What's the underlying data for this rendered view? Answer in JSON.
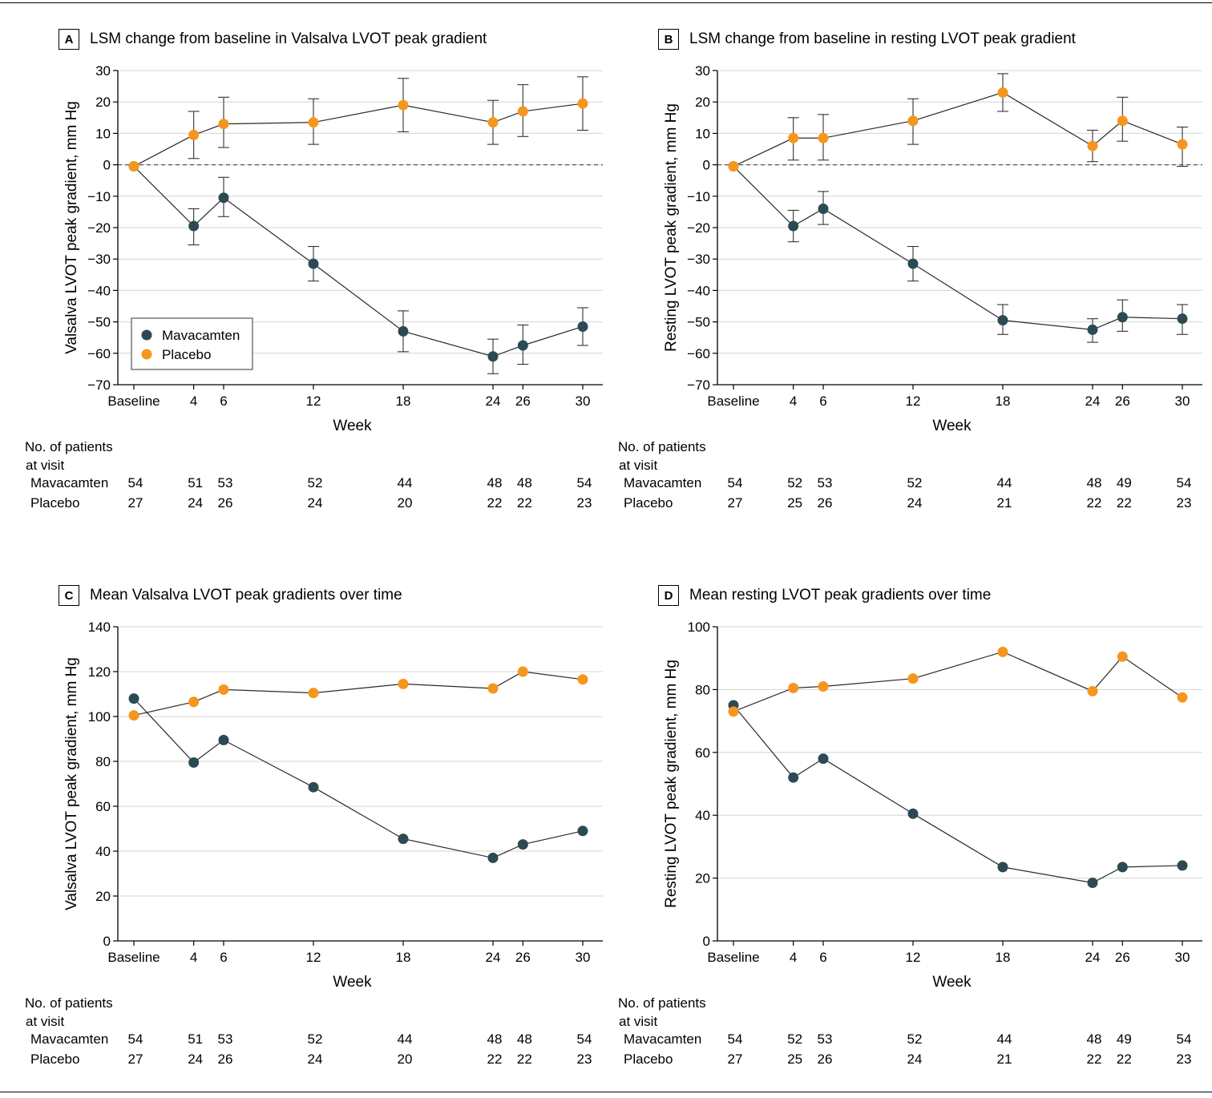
{
  "colors": {
    "mavacamten": "#2c4a54",
    "placebo": "#f5961e",
    "grid": "#d4d4d4",
    "axis": "#000000",
    "line": "#2a2a2a"
  },
  "x_axis": {
    "label": "Week",
    "ticks": [
      {
        "x": 0,
        "label": "Baseline"
      },
      {
        "x": 4,
        "label": "4"
      },
      {
        "x": 6,
        "label": "6"
      },
      {
        "x": 12,
        "label": "12"
      },
      {
        "x": 18,
        "label": "18"
      },
      {
        "x": 24,
        "label": "24"
      },
      {
        "x": 26,
        "label": "26"
      },
      {
        "x": 30,
        "label": "30"
      }
    ]
  },
  "counts_header": [
    "No. of patients",
    "at visit"
  ],
  "legend": {
    "entries": [
      "Mavacamten",
      "Placebo"
    ]
  },
  "panels": [
    {
      "letter": "A",
      "title": "LSM change from baseline in Valsalva LVOT peak gradient",
      "counts": {
        "mavacamten": [
          "54",
          "51",
          "53",
          "52",
          "44",
          "48",
          "48",
          "54"
        ],
        "placebo": [
          "27",
          "24",
          "26",
          "24",
          "20",
          "22",
          "22",
          "23"
        ]
      }
    },
    {
      "letter": "B",
      "title": "LSM change from baseline in resting LVOT peak gradient",
      "counts": {
        "mavacamten": [
          "54",
          "52",
          "53",
          "52",
          "44",
          "48",
          "49",
          "54"
        ],
        "placebo": [
          "27",
          "25",
          "26",
          "24",
          "21",
          "22",
          "22",
          "23"
        ]
      }
    },
    {
      "letter": "C",
      "title": "Mean Valsalva LVOT peak gradients over time",
      "counts": {
        "mavacamten": [
          "54",
          "51",
          "53",
          "52",
          "44",
          "48",
          "48",
          "54"
        ],
        "placebo": [
          "27",
          "24",
          "26",
          "24",
          "20",
          "22",
          "22",
          "23"
        ]
      }
    },
    {
      "letter": "D",
      "title": "Mean resting LVOT peak gradients over time",
      "counts": {
        "mavacamten": [
          "54",
          "52",
          "53",
          "52",
          "44",
          "48",
          "49",
          "54"
        ],
        "placebo": [
          "27",
          "25",
          "26",
          "24",
          "21",
          "22",
          "22",
          "23"
        ]
      }
    }
  ],
  "chart_data": [
    {
      "type": "line",
      "title": "LSM change from baseline in Valsalva LVOT peak gradient",
      "xlabel": "Week",
      "ylabel": "Valsalva LVOT peak gradient, mm Hg",
      "ylim": [
        -70,
        30
      ],
      "yticks": [
        30,
        20,
        10,
        0,
        -10,
        -20,
        -30,
        -40,
        -50,
        -60,
        -70
      ],
      "grid": true,
      "zero_line": "dashed",
      "legend": "lower-left",
      "x": [
        0,
        4,
        6,
        12,
        18,
        24,
        26,
        30
      ],
      "series": [
        {
          "name": "Mavacamten",
          "values": [
            -0.5,
            -19.5,
            -10.5,
            -31.5,
            -53,
            -61,
            -57.5,
            -51.5
          ],
          "error_low": [
            -0.5,
            -25.5,
            -16.5,
            -37,
            -59.5,
            -66.5,
            -63.5,
            -57.5
          ],
          "error_high": [
            -0.5,
            -14,
            -4,
            -26,
            -46.5,
            -55.5,
            -51,
            -45.5
          ]
        },
        {
          "name": "Placebo",
          "values": [
            -0.5,
            9.5,
            13,
            13.5,
            19,
            13.5,
            17,
            19.5
          ],
          "error_low": [
            -0.5,
            2,
            5.5,
            6.5,
            10.5,
            6.5,
            9,
            11
          ],
          "error_high": [
            -0.5,
            17,
            21.5,
            21,
            27.5,
            20.5,
            25.5,
            28
          ]
        }
      ]
    },
    {
      "type": "line",
      "title": "LSM change from baseline in resting LVOT peak gradient",
      "xlabel": "Week",
      "ylabel": "Resting LVOT peak gradient, mm Hg",
      "ylim": [
        -70,
        30
      ],
      "yticks": [
        30,
        20,
        10,
        0,
        -10,
        -20,
        -30,
        -40,
        -50,
        -60,
        -70
      ],
      "grid": true,
      "zero_line": "dashed",
      "x": [
        0,
        4,
        6,
        12,
        18,
        24,
        26,
        30
      ],
      "series": [
        {
          "name": "Mavacamten",
          "values": [
            -0.5,
            -19.5,
            -14,
            -31.5,
            -49.5,
            -52.5,
            -48.5,
            -49
          ],
          "error_low": [
            -0.5,
            -24.5,
            -19,
            -37,
            -54,
            -56.5,
            -53,
            -54
          ],
          "error_high": [
            -0.5,
            -14.5,
            -8.5,
            -26,
            -44.5,
            -49,
            -43,
            -44.5
          ]
        },
        {
          "name": "Placebo",
          "values": [
            -0.5,
            8.5,
            8.5,
            14,
            23,
            6,
            14,
            6.5
          ],
          "error_low": [
            -0.5,
            1.5,
            1.5,
            6.5,
            17,
            1,
            7.5,
            -0.5
          ],
          "error_high": [
            -0.5,
            15,
            16,
            21,
            29,
            11,
            21.5,
            12
          ]
        }
      ]
    },
    {
      "type": "line",
      "title": "Mean Valsalva LVOT peak gradients over time",
      "xlabel": "Week",
      "ylabel": "Valsalva LVOT peak gradient, mm Hg",
      "ylim": [
        0,
        140
      ],
      "yticks": [
        140,
        120,
        100,
        80,
        60,
        40,
        20,
        0
      ],
      "grid": true,
      "x": [
        0,
        4,
        6,
        12,
        18,
        24,
        26,
        30
      ],
      "series": [
        {
          "name": "Mavacamten",
          "values": [
            108,
            79.5,
            89.5,
            68.5,
            45.5,
            37,
            43,
            49
          ]
        },
        {
          "name": "Placebo",
          "values": [
            100.5,
            106.5,
            112,
            110.5,
            114.5,
            112.5,
            120,
            116.5
          ]
        }
      ]
    },
    {
      "type": "line",
      "title": "Mean resting LVOT peak gradients over time",
      "xlabel": "Week",
      "ylabel": "Resting LVOT peak gradient, mm Hg",
      "ylim": [
        0,
        100
      ],
      "yticks": [
        100,
        80,
        60,
        40,
        20,
        0
      ],
      "grid": true,
      "x": [
        0,
        4,
        6,
        12,
        18,
        24,
        26,
        30
      ],
      "series": [
        {
          "name": "Mavacamten",
          "values": [
            75,
            52,
            58,
            40.5,
            23.5,
            18.5,
            23.5,
            24
          ]
        },
        {
          "name": "Placebo",
          "values": [
            73,
            80.5,
            81,
            83.5,
            92,
            79.5,
            90.5,
            77.5
          ]
        }
      ]
    }
  ]
}
